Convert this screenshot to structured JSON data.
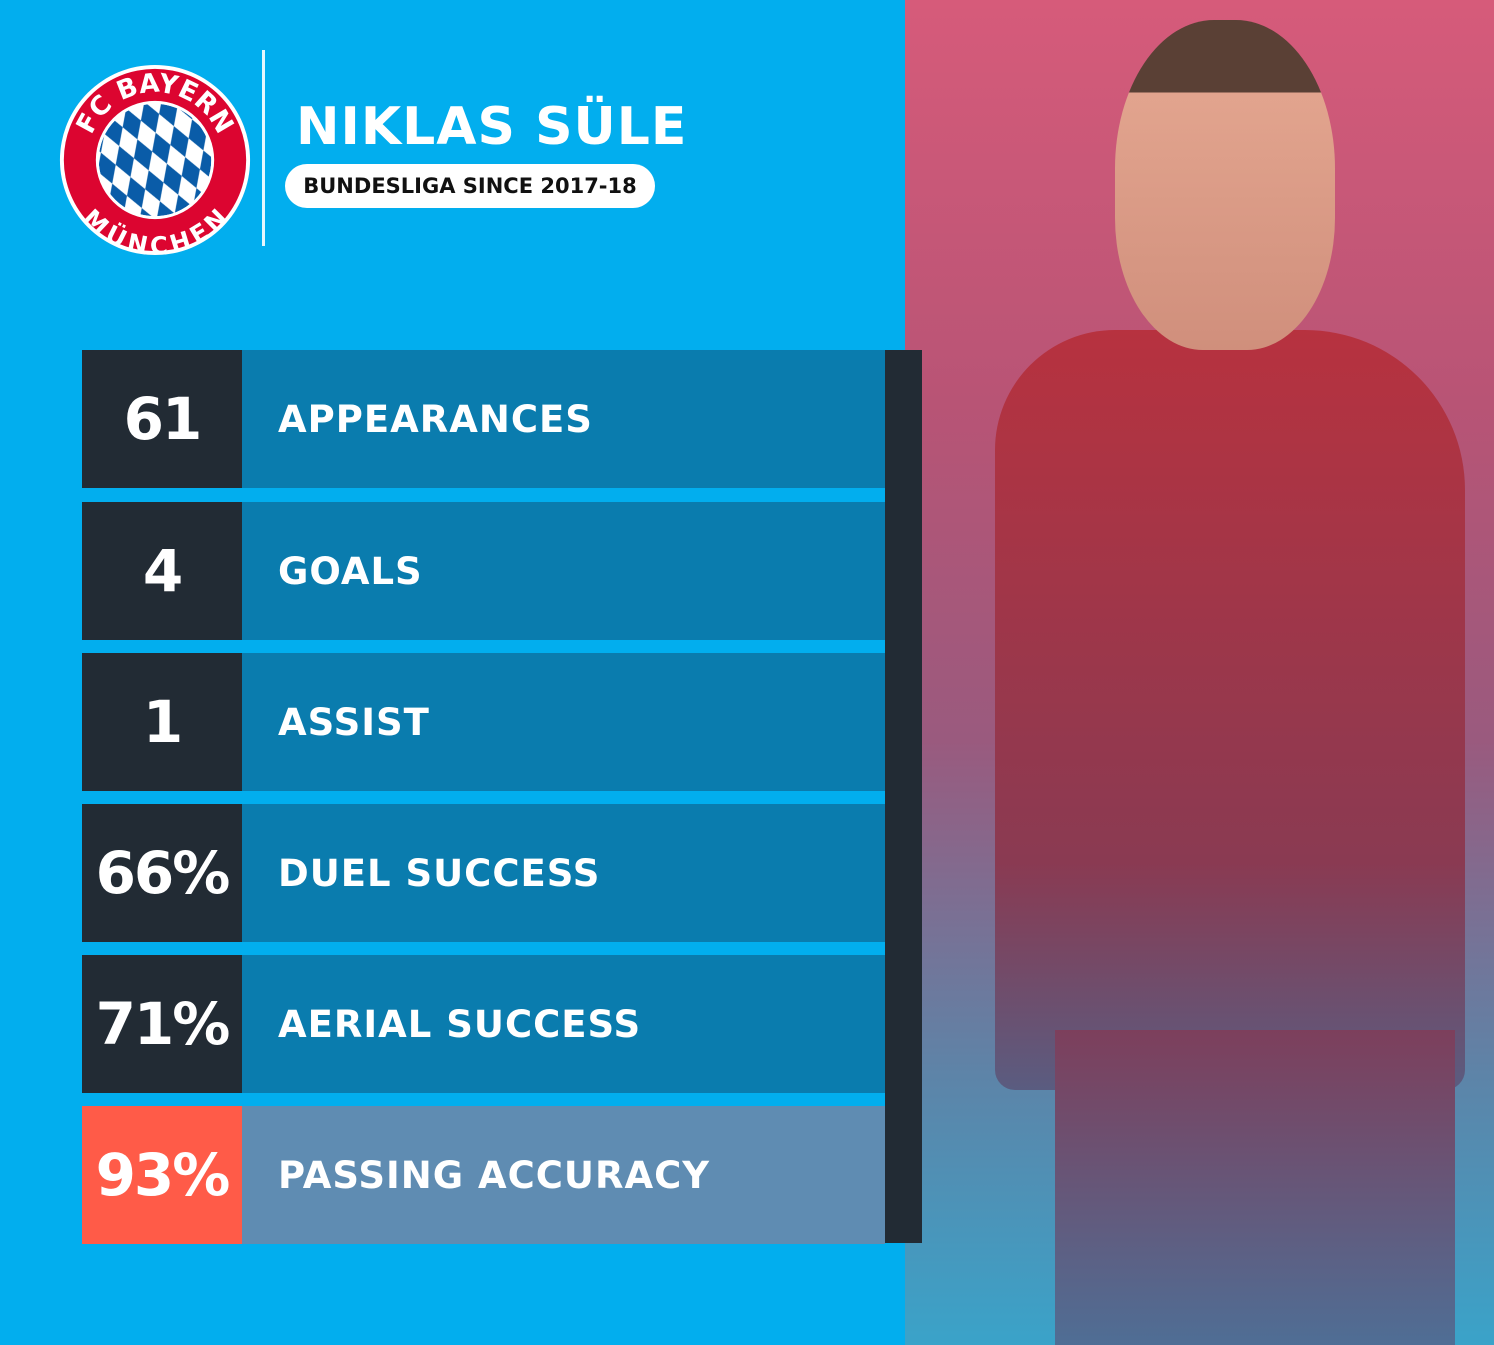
{
  "header": {
    "player_name": "NIKLAS SÜLE",
    "subtitle": "BUNDESLIGA SINCE 2017-18"
  },
  "logo": {
    "top_text": "FC BAYERN",
    "bottom_text": "MÜNCHEN"
  },
  "stats": [
    {
      "value": "61",
      "label": "APPEARANCES"
    },
    {
      "value": "4",
      "label": "GOALS"
    },
    {
      "value": "1",
      "label": "ASSIST"
    },
    {
      "value": "66%",
      "label": "DUEL SUCCESS"
    },
    {
      "value": "71%",
      "label": "AERIAL SUCCESS"
    },
    {
      "value": "93%",
      "label": "PASSING ACCURACY",
      "highlight": true
    }
  ],
  "colors": {
    "background": "#02aeee",
    "number_box": "#222b34",
    "label_box": "#0a7cae",
    "highlight_number": "#ff5b48",
    "highlight_label": "#5f8cb2",
    "logo_red": "#dc0530",
    "logo_blue": "#0a5ca8"
  }
}
